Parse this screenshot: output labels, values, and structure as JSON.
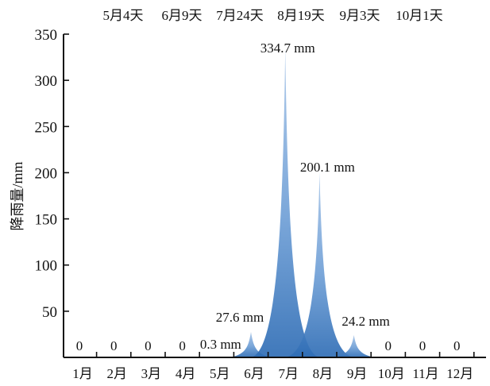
{
  "chart_data": {
    "type": "area",
    "categories": [
      "1月",
      "2月",
      "3月",
      "4月",
      "5月",
      "6月",
      "7月",
      "8月",
      "9月",
      "10月",
      "11月",
      "12月"
    ],
    "values": [
      0,
      0,
      0,
      0,
      0.3,
      27.6,
      334.7,
      200.1,
      24.2,
      0,
      0,
      0
    ],
    "data_labels": [
      "0",
      "0",
      "0",
      "0",
      "0.3 mm",
      "27.6 mm",
      "334.7 mm",
      "200.1 mm",
      "24.2 mm",
      "0",
      "0",
      "0"
    ],
    "top_labels": [
      "5月4天",
      "6月9天",
      "7月24天",
      "8月19天",
      "9月3天",
      "10月1天"
    ],
    "ylabel": "降雨量/mm",
    "xlabel": "",
    "ylim": [
      0,
      350
    ],
    "yticks": [
      "350",
      "300",
      "250",
      "200",
      "150",
      "100",
      "50"
    ],
    "grid": false,
    "colors": {
      "fill_light": "#a9c6e8",
      "fill_mid": "#6f9fd6",
      "fill_dark": "#2f6db5",
      "overlap": "#1f4f8a"
    }
  }
}
